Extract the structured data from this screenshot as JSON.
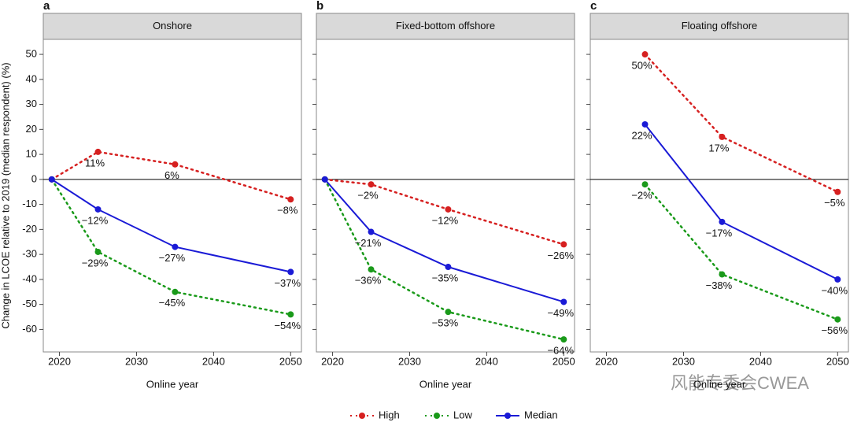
{
  "chart_data": [
    {
      "type": "line",
      "panel_label": "a",
      "title": "Onshore",
      "x_label": "Online year",
      "y_label": "Change in LCOE relative to 2019 (median respondent) (%)",
      "x": [
        2019,
        2025,
        2035,
        2050
      ],
      "xlim": [
        2017.9,
        2051.4
      ],
      "xticks": [
        2020,
        2030,
        2040,
        2050
      ],
      "ylim": [
        -69,
        56
      ],
      "yticks": [
        -60,
        -50,
        -40,
        -30,
        -20,
        -10,
        0,
        10,
        20,
        30,
        40,
        50
      ],
      "series": [
        {
          "name": "High",
          "color": "#d62020",
          "style": "dotted",
          "values": [
            0,
            11,
            6,
            -8
          ],
          "value_labels": [
            null,
            "11%",
            "6%",
            "−8%"
          ]
        },
        {
          "name": "Low",
          "color": "#1a9a1a",
          "style": "dotted",
          "values": [
            0,
            -29,
            -45,
            -54
          ],
          "value_labels": [
            null,
            "−29%",
            "−45%",
            "−54%"
          ]
        },
        {
          "name": "Median",
          "color": "#1a1ad6",
          "style": "solid",
          "values": [
            0,
            -12,
            -27,
            -37
          ],
          "value_labels": [
            null,
            "−12%",
            "−27%",
            "−37%"
          ]
        }
      ]
    },
    {
      "type": "line",
      "panel_label": "b",
      "title": "Fixed-bottom offshore",
      "x_label": "Online year",
      "x": [
        2019,
        2025,
        2035,
        2050
      ],
      "xlim": [
        2017.9,
        2051.4
      ],
      "xticks": [
        2020,
        2030,
        2040,
        2050
      ],
      "ylim": [
        -69,
        56
      ],
      "yticks": [
        -60,
        -50,
        -40,
        -30,
        -20,
        -10,
        0,
        10,
        20,
        30,
        40,
        50
      ],
      "series": [
        {
          "name": "High",
          "color": "#d62020",
          "style": "dotted",
          "values": [
            0,
            -2,
            -12,
            -26
          ],
          "value_labels": [
            null,
            "−2%",
            "−12%",
            "−26%"
          ]
        },
        {
          "name": "Low",
          "color": "#1a9a1a",
          "style": "dotted",
          "values": [
            0,
            -36,
            -53,
            -64
          ],
          "value_labels": [
            null,
            "−36%",
            "−53%",
            "−64%"
          ]
        },
        {
          "name": "Median",
          "color": "#1a1ad6",
          "style": "solid",
          "values": [
            0,
            -21,
            -35,
            -49
          ],
          "value_labels": [
            null,
            "−21%",
            "−35%",
            "−49%"
          ]
        }
      ]
    },
    {
      "type": "line",
      "panel_label": "c",
      "title": "Floating offshore",
      "x_label": "Online year",
      "x": [
        2025,
        2035,
        2050
      ],
      "xlim": [
        2017.9,
        2051.4
      ],
      "xticks": [
        2020,
        2030,
        2040,
        2050
      ],
      "ylim": [
        -69,
        56
      ],
      "yticks": [
        -60,
        -50,
        -40,
        -30,
        -20,
        -10,
        0,
        10,
        20,
        30,
        40,
        50
      ],
      "series": [
        {
          "name": "High",
          "color": "#d62020",
          "style": "dotted",
          "values": [
            50,
            17,
            -5
          ],
          "value_labels": [
            "50%",
            "17%",
            "−5%"
          ]
        },
        {
          "name": "Low",
          "color": "#1a9a1a",
          "style": "dotted",
          "values": [
            -2,
            -38,
            -56
          ],
          "value_labels": [
            "−2%",
            "−38%",
            "−56%"
          ]
        },
        {
          "name": "Median",
          "color": "#1a1ad6",
          "style": "solid",
          "values": [
            22,
            -17,
            -40
          ],
          "value_labels": [
            "22%",
            "−17%",
            "−40%"
          ]
        }
      ]
    }
  ],
  "watermark": "风能专委会CWEA"
}
